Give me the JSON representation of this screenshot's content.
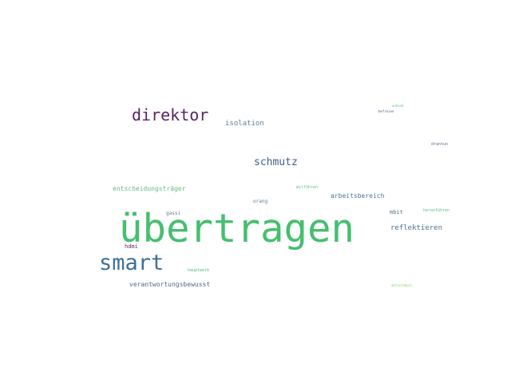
{
  "word_cloud": {
    "words": [
      {
        "id": "uebertragen",
        "text": "übertragen",
        "color": "#45bf6f"
      },
      {
        "id": "smart",
        "text": "smart",
        "color": "#3c6f97"
      },
      {
        "id": "direktor",
        "text": "direktor",
        "color": "#5a2268"
      },
      {
        "id": "schmutz",
        "text": "schmutz",
        "color": "#43598f"
      },
      {
        "id": "isolation",
        "text": "isolation",
        "color": "#5d7f9c"
      },
      {
        "id": "entscheidungstraeger",
        "text": "entscheidungsträger",
        "color": "#5fbd80"
      },
      {
        "id": "arbeitsbereich",
        "text": "arbeitsbereich",
        "color": "#4a7598"
      },
      {
        "id": "reflektieren",
        "text": "reflektieren",
        "color": "#4c6f94"
      },
      {
        "id": "verantwortungsbewusst",
        "text": "verantwortungsbewusst",
        "color": "#56668f"
      },
      {
        "id": "hdmi",
        "text": "hdmi",
        "color": "#5d2c72"
      },
      {
        "id": "mbit",
        "text": "mbit",
        "color": "#51758d"
      },
      {
        "id": "gassi",
        "text": "gassi",
        "color": "#6a7590"
      },
      {
        "id": "orang",
        "text": "orang",
        "color": "#61779a"
      },
      {
        "id": "hauptwerk",
        "text": "hauptwerk",
        "color": "#55bd7b"
      },
      {
        "id": "mitfuehren",
        "text": "mitführen",
        "color": "#63bf7f"
      },
      {
        "id": "heranfuehren",
        "text": "heranführen",
        "color": "#59bf86"
      },
      {
        "id": "drantun",
        "text": "drantun",
        "color": "#5e6b84"
      },
      {
        "id": "anhand",
        "text": "anhand",
        "color": "#64c497"
      },
      {
        "id": "befreien",
        "text": "befreien",
        "color": "#4f5a86"
      },
      {
        "id": "amtsstempel",
        "text": "amtsstempel",
        "color": "#8ed66d"
      }
    ]
  }
}
